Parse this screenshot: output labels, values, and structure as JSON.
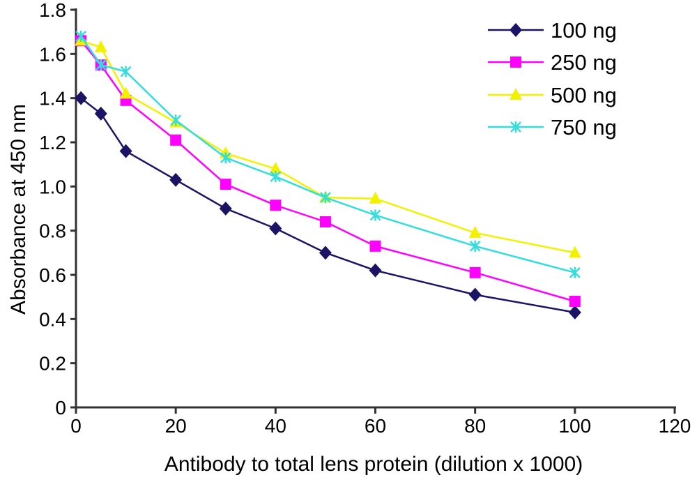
{
  "chart_data": {
    "type": "line",
    "title": "",
    "xlabel": "Antibody to total lens protein (dilution x 1000)",
    "ylabel": "Absorbance at 450 nm",
    "xlim": [
      0,
      120
    ],
    "ylim": [
      0,
      1.8
    ],
    "xticks": [
      0,
      20,
      40,
      60,
      80,
      100,
      120
    ],
    "yticks": [
      0,
      0.2,
      0.4,
      0.6,
      0.8,
      1.0,
      1.2,
      1.4,
      1.6,
      1.8
    ],
    "ytick_labels": [
      "0",
      "0.2",
      "0.4",
      "0.6",
      "0.8",
      "1.0",
      "1.2",
      "1.4",
      "1.6",
      "1.8"
    ],
    "grid": false,
    "legend_position": "top-right",
    "x": [
      1,
      5,
      10,
      20,
      30,
      40,
      50,
      60,
      80,
      100
    ],
    "series": [
      {
        "name": "100 ng",
        "color": "#1b1464",
        "marker": "diamond",
        "values": [
          1.4,
          1.33,
          1.16,
          1.03,
          0.9,
          0.81,
          0.7,
          0.62,
          0.51,
          0.43
        ]
      },
      {
        "name": "250 ng",
        "color": "#ff00ff",
        "marker": "square",
        "values": [
          1.66,
          1.55,
          1.39,
          1.21,
          1.01,
          0.915,
          0.84,
          0.73,
          0.61,
          0.48
        ]
      },
      {
        "name": "500 ng",
        "color": "#f2f200",
        "marker": "triangle",
        "values": [
          1.66,
          1.63,
          1.42,
          1.29,
          1.15,
          1.08,
          0.95,
          0.945,
          0.79,
          0.7
        ]
      },
      {
        "name": "750 ng",
        "color": "#33dddd",
        "marker": "x",
        "values": [
          1.68,
          1.55,
          1.52,
          1.3,
          1.13,
          1.045,
          0.95,
          0.87,
          0.73,
          0.61
        ]
      }
    ]
  }
}
